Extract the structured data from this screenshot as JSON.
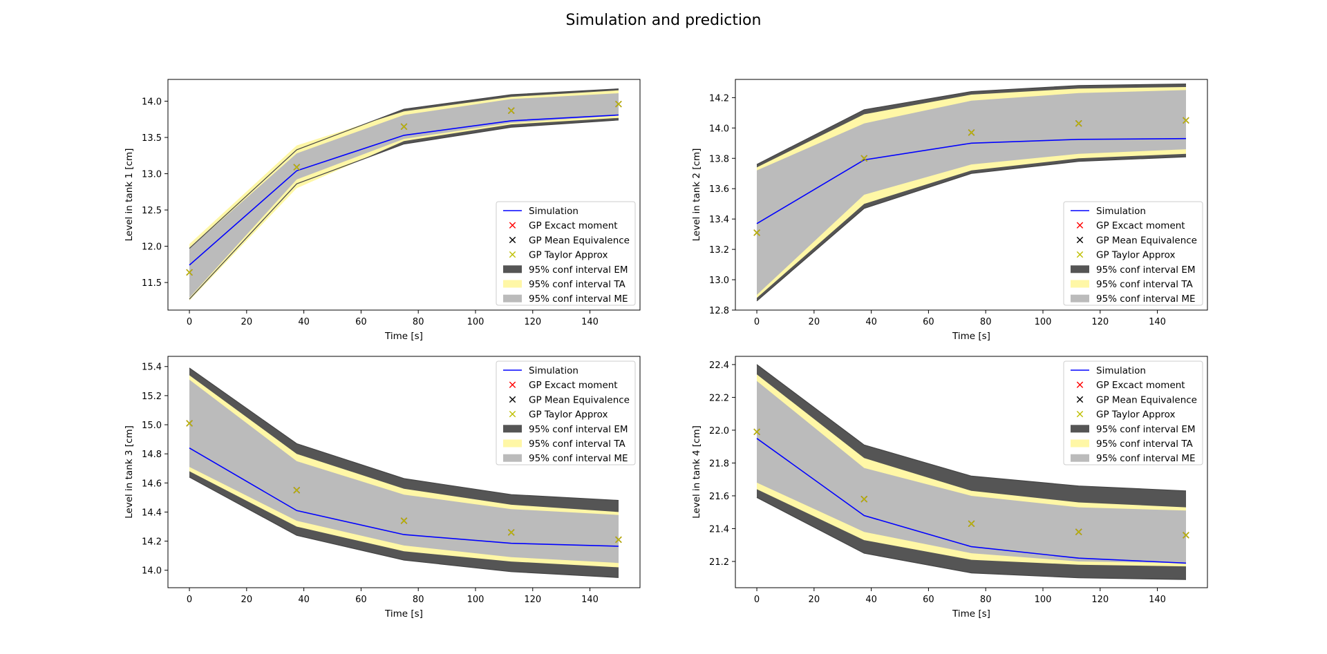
{
  "figure": {
    "title": "Simulation and prediction"
  },
  "legend_labels": [
    "Simulation",
    "GP Excact moment",
    "GP Mean Equivalence",
    "GP Taylor Approx",
    "95% conf interval EM",
    "95% conf interval TA",
    "95% conf interval ME"
  ],
  "colors": {
    "simulation": "#0000ff",
    "exact_moment_marker": "#ff0000",
    "mean_equivalence_marker": "#000000",
    "taylor_marker": "#bfbf00",
    "ci_em": "#555555",
    "ci_ta": "#fff7a6",
    "ci_me": "#bbbbbb"
  },
  "chart_data": [
    {
      "type": "line",
      "xlabel": "Time [s]",
      "ylabel": "Level in tank 1 [cm]",
      "xlim": [
        -7.5,
        157.5
      ],
      "ylim": [
        11.12,
        14.3
      ],
      "xticks": [
        0,
        20,
        40,
        60,
        80,
        100,
        120,
        140
      ],
      "yticks": [
        11.5,
        12.0,
        12.5,
        13.0,
        13.5,
        14.0
      ],
      "legend_position": "lower-right",
      "x": [
        0,
        37.5,
        75,
        112.5,
        150
      ],
      "series": [
        {
          "name": "Simulation",
          "values": [
            11.74,
            13.04,
            13.53,
            13.73,
            13.81
          ]
        },
        {
          "name": "GP Excact moment",
          "values": [
            11.64,
            13.09,
            13.65,
            13.87,
            13.96
          ]
        },
        {
          "name": "GP Mean Equivalence",
          "values": [
            11.64,
            13.09,
            13.65,
            13.87,
            13.96
          ]
        },
        {
          "name": "GP Taylor Approx",
          "values": [
            11.64,
            13.09,
            13.65,
            13.87,
            13.96
          ]
        }
      ],
      "intervals": [
        {
          "name": "95% conf interval EM",
          "lower": [
            11.27,
            12.86,
            13.41,
            13.64,
            13.74
          ],
          "upper": [
            11.97,
            13.33,
            13.89,
            14.09,
            14.17
          ]
        },
        {
          "name": "95% conf interval TA",
          "lower": [
            11.25,
            12.8,
            13.45,
            13.68,
            13.77
          ],
          "upper": [
            12.03,
            13.39,
            13.86,
            14.06,
            14.15
          ]
        },
        {
          "name": "95% conf interval ME",
          "lower": [
            11.29,
            12.92,
            13.48,
            13.7,
            13.8
          ],
          "upper": [
            11.97,
            13.28,
            13.81,
            14.03,
            14.11
          ]
        }
      ]
    },
    {
      "type": "line",
      "xlabel": "Time [s]",
      "ylabel": "Level in tank 2 [cm]",
      "xlim": [
        -7.5,
        157.5
      ],
      "ylim": [
        12.8,
        14.32
      ],
      "xticks": [
        0,
        20,
        40,
        60,
        80,
        100,
        120,
        140
      ],
      "yticks": [
        12.8,
        13.0,
        13.2,
        13.4,
        13.6,
        13.8,
        14.0,
        14.2
      ],
      "legend_position": "lower-right",
      "x": [
        0,
        37.5,
        75,
        112.5,
        150
      ],
      "series": [
        {
          "name": "Simulation",
          "values": [
            13.37,
            13.79,
            13.9,
            13.925,
            13.93
          ]
        },
        {
          "name": "GP Excact moment",
          "values": [
            13.31,
            13.8,
            13.97,
            14.03,
            14.05
          ]
        },
        {
          "name": "GP Mean Equivalence",
          "values": [
            13.31,
            13.8,
            13.97,
            14.03,
            14.05
          ]
        },
        {
          "name": "GP Taylor Approx",
          "values": [
            13.31,
            13.8,
            13.97,
            14.03,
            14.05
          ]
        }
      ],
      "intervals": [
        {
          "name": "95% conf interval EM",
          "lower": [
            12.86,
            13.47,
            13.7,
            13.78,
            13.81
          ],
          "upper": [
            13.76,
            14.12,
            14.24,
            14.28,
            14.29
          ]
        },
        {
          "name": "95% conf interval TA",
          "lower": [
            12.88,
            13.5,
            13.72,
            13.8,
            13.83
          ],
          "upper": [
            13.74,
            14.09,
            14.22,
            14.26,
            14.27
          ]
        },
        {
          "name": "95% conf interval ME",
          "lower": [
            12.9,
            13.56,
            13.76,
            13.83,
            13.86
          ],
          "upper": [
            13.72,
            14.03,
            14.18,
            14.23,
            14.25
          ]
        }
      ]
    },
    {
      "type": "line",
      "xlabel": "Time [s]",
      "ylabel": "Level in tank 3 [cm]",
      "xlim": [
        -7.5,
        157.5
      ],
      "ylim": [
        13.88,
        15.47
      ],
      "xticks": [
        0,
        20,
        40,
        60,
        80,
        100,
        120,
        140
      ],
      "yticks": [
        14.0,
        14.2,
        14.4,
        14.6,
        14.8,
        15.0,
        15.2,
        15.4
      ],
      "legend_position": "upper-right",
      "x": [
        0,
        37.5,
        75,
        112.5,
        150
      ],
      "series": [
        {
          "name": "Simulation",
          "values": [
            14.84,
            14.41,
            14.245,
            14.185,
            14.165
          ]
        },
        {
          "name": "GP Excact moment",
          "values": [
            15.01,
            14.55,
            14.34,
            14.26,
            14.21
          ]
        },
        {
          "name": "GP Mean Equivalence",
          "values": [
            15.01,
            14.55,
            14.34,
            14.26,
            14.21
          ]
        },
        {
          "name": "GP Taylor Approx",
          "values": [
            15.01,
            14.55,
            14.34,
            14.26,
            14.21
          ]
        }
      ],
      "intervals": [
        {
          "name": "95% conf interval EM",
          "lower": [
            14.64,
            14.24,
            14.07,
            13.99,
            13.95
          ],
          "upper": [
            15.39,
            14.87,
            14.63,
            14.52,
            14.48
          ]
        },
        {
          "name": "95% conf interval TA",
          "lower": [
            14.68,
            14.3,
            14.13,
            14.06,
            14.02
          ],
          "upper": [
            15.34,
            14.8,
            14.56,
            14.45,
            14.4
          ]
        },
        {
          "name": "95% conf interval ME",
          "lower": [
            14.71,
            14.34,
            14.17,
            14.09,
            14.05
          ],
          "upper": [
            15.31,
            14.75,
            14.52,
            14.42,
            14.38
          ]
        }
      ]
    },
    {
      "type": "line",
      "xlabel": "Time [s]",
      "ylabel": "Level in tank 4 [cm]",
      "xlim": [
        -7.5,
        157.5
      ],
      "ylim": [
        21.04,
        22.45
      ],
      "xticks": [
        0,
        20,
        40,
        60,
        80,
        100,
        120,
        140
      ],
      "yticks": [
        21.2,
        21.4,
        21.6,
        21.8,
        22.0,
        22.2,
        22.4
      ],
      "legend_position": "upper-right",
      "x": [
        0,
        37.5,
        75,
        112.5,
        150
      ],
      "series": [
        {
          "name": "Simulation",
          "values": [
            21.95,
            21.48,
            21.29,
            21.22,
            21.19
          ]
        },
        {
          "name": "GP Excact moment",
          "values": [
            21.99,
            21.58,
            21.43,
            21.38,
            21.36
          ]
        },
        {
          "name": "GP Mean Equivalence",
          "values": [
            21.99,
            21.58,
            21.43,
            21.38,
            21.36
          ]
        },
        {
          "name": "GP Taylor Approx",
          "values": [
            21.99,
            21.58,
            21.43,
            21.38,
            21.36
          ]
        }
      ],
      "intervals": [
        {
          "name": "95% conf interval EM",
          "lower": [
            21.59,
            21.25,
            21.13,
            21.1,
            21.09
          ],
          "upper": [
            22.4,
            21.91,
            21.72,
            21.66,
            21.63
          ]
        },
        {
          "name": "95% conf interval TA",
          "lower": [
            21.64,
            21.33,
            21.21,
            21.18,
            21.17
          ],
          "upper": [
            22.34,
            21.83,
            21.63,
            21.56,
            21.53
          ]
        },
        {
          "name": "95% conf interval ME",
          "lower": [
            21.68,
            21.38,
            21.25,
            21.2,
            21.19
          ],
          "upper": [
            22.3,
            21.77,
            21.6,
            21.53,
            21.51
          ]
        }
      ]
    }
  ]
}
